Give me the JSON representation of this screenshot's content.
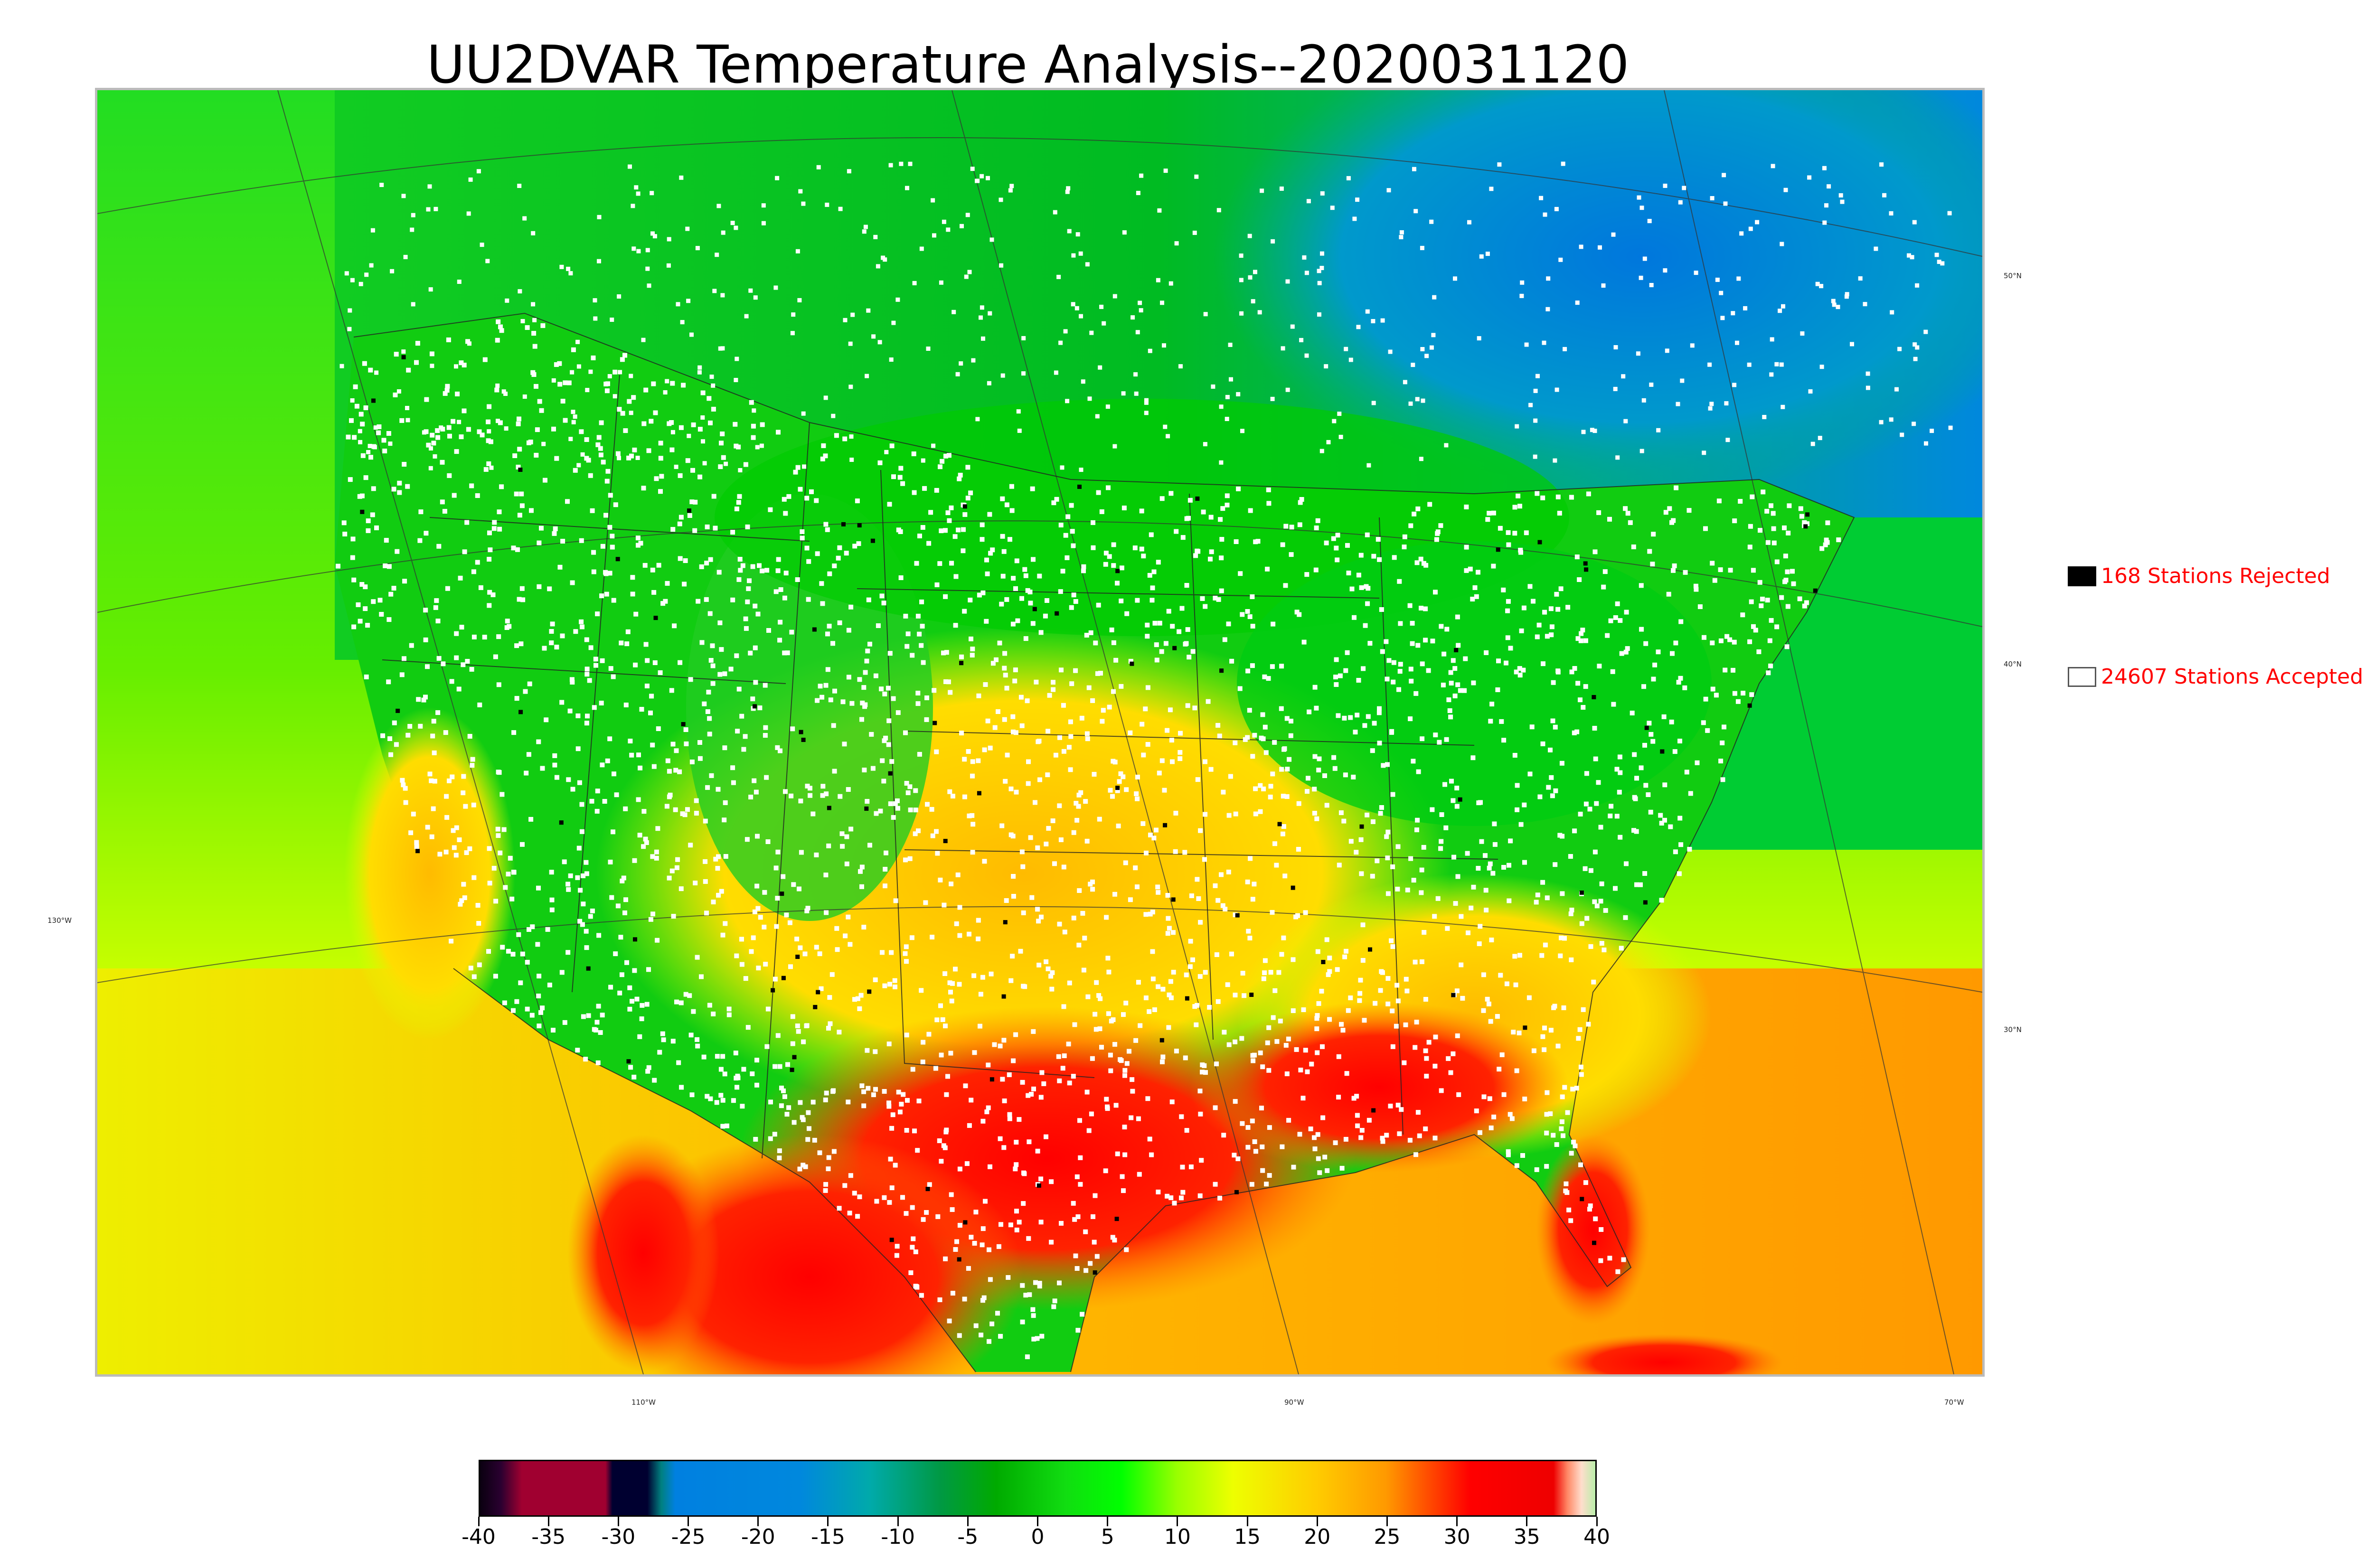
{
  "title": "UU2DVAR Temperature Analysis--2020031120",
  "legend": {
    "rejected": {
      "label": "168 Stations Rejected",
      "color": "#000000"
    },
    "accepted": {
      "label": "24607 Stations Accepted",
      "color": "#ffffff"
    }
  },
  "longitude_labels": [
    "130°W",
    "110°W",
    "90°W",
    "70°W"
  ],
  "latitude_labels": [
    "50°N",
    "40°N",
    "30°N"
  ],
  "colorbar": {
    "ticks": [
      "-40",
      "-35",
      "-30",
      "-25",
      "-20",
      "-15",
      "-10",
      "-5",
      "0",
      "5",
      "10",
      "15",
      "20",
      "25",
      "30",
      "35",
      "40"
    ],
    "min": -40,
    "max": 40,
    "stops": [
      {
        "value": -40,
        "color": "#0a0010"
      },
      {
        "value": -38.5,
        "color": "#2a0030"
      },
      {
        "value": -37,
        "color": "#a00030"
      },
      {
        "value": -31,
        "color": "#a00030"
      },
      {
        "value": -30.5,
        "color": "#000030"
      },
      {
        "value": -28,
        "color": "#000030"
      },
      {
        "value": -27,
        "color": "#008080"
      },
      {
        "value": -26,
        "color": "#0080e0"
      },
      {
        "value": -17,
        "color": "#0088dd"
      },
      {
        "value": -12,
        "color": "#00aaaa"
      },
      {
        "value": -7,
        "color": "#009944"
      },
      {
        "value": -3,
        "color": "#00aa00"
      },
      {
        "value": 2,
        "color": "#11dd11"
      },
      {
        "value": 6,
        "color": "#00ff00"
      },
      {
        "value": 10,
        "color": "#99ff00"
      },
      {
        "value": 14,
        "color": "#eeff00"
      },
      {
        "value": 20,
        "color": "#ffcc00"
      },
      {
        "value": 25,
        "color": "#ff9900"
      },
      {
        "value": 29,
        "color": "#ff3300"
      },
      {
        "value": 31,
        "color": "#ff0000"
      },
      {
        "value": 37,
        "color": "#ee0000"
      },
      {
        "value": 38,
        "color": "#ff8866"
      },
      {
        "value": 39,
        "color": "#ffddcc"
      },
      {
        "value": 40,
        "color": "#bbeeaa"
      }
    ]
  },
  "map_colors": {
    "ocean_west": "#ccff00",
    "ocean_south": "#ffbb00",
    "ocean_atlantic": "#00cc22",
    "canada_north": "#00bb33",
    "hudson": "#0088dd",
    "land_north": "#00cc00",
    "plains_warm": "#ffcc00",
    "south_hot": "#ff2200",
    "mexico_hot": "#ee1100",
    "stations_accepted": "#ffffff",
    "stations_rejected": "#000000"
  }
}
